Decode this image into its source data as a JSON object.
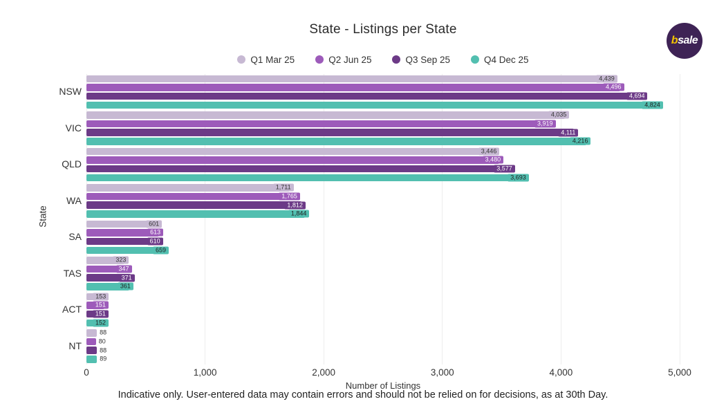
{
  "title": "State - Listings per State",
  "footer": "Indicative only. User-entered data may contain errors and should not be relied on for decisions, as at 30th Day.",
  "logo": {
    "b": "b",
    "rest": "sale",
    "bg_color": "#3e2355",
    "b_color": "#f2c400",
    "rest_color": "#ffffff"
  },
  "colors": {
    "grid": "#ededed",
    "axis_text": "#333333",
    "title_text": "#2b2b2b"
  },
  "chart_data": {
    "type": "bar",
    "orientation": "horizontal",
    "title": "State - Listings per State",
    "xlabel": "Number of Listings",
    "ylabel": "State",
    "categories": [
      "NSW",
      "VIC",
      "QLD",
      "WA",
      "SA",
      "TAS",
      "ACT",
      "NT"
    ],
    "series": [
      {
        "name": "Q1 Mar 25",
        "color": "#c7b9d3",
        "label_text_color": "#333333",
        "values": [
          4439,
          4035,
          3446,
          1711,
          601,
          323,
          153,
          88
        ]
      },
      {
        "name": "Q2 Jun 25",
        "color": "#9d5bba",
        "label_text_color": "#ffffff",
        "values": [
          4496,
          3919,
          3480,
          1765,
          613,
          347,
          151,
          80
        ]
      },
      {
        "name": "Q3 Sep 25",
        "color": "#6c3a87",
        "label_text_color": "#ffffff",
        "values": [
          4694,
          4111,
          3577,
          1812,
          610,
          371,
          151,
          88
        ]
      },
      {
        "name": "Q4 Dec 25",
        "color": "#52bfb0",
        "label_text_color": "#1f1f1f",
        "values": [
          4824,
          4216,
          3693,
          1844,
          659,
          361,
          152,
          89
        ]
      }
    ],
    "xlim": [
      0,
      5000
    ],
    "xticks": [
      0,
      1000,
      2000,
      3000,
      4000,
      5000
    ],
    "xtick_labels": [
      "0",
      "1,000",
      "2,000",
      "3,000",
      "4,000",
      "5,000"
    ],
    "grid": "vertical",
    "legend_position": "top",
    "value_labels": "end-of-bar"
  }
}
